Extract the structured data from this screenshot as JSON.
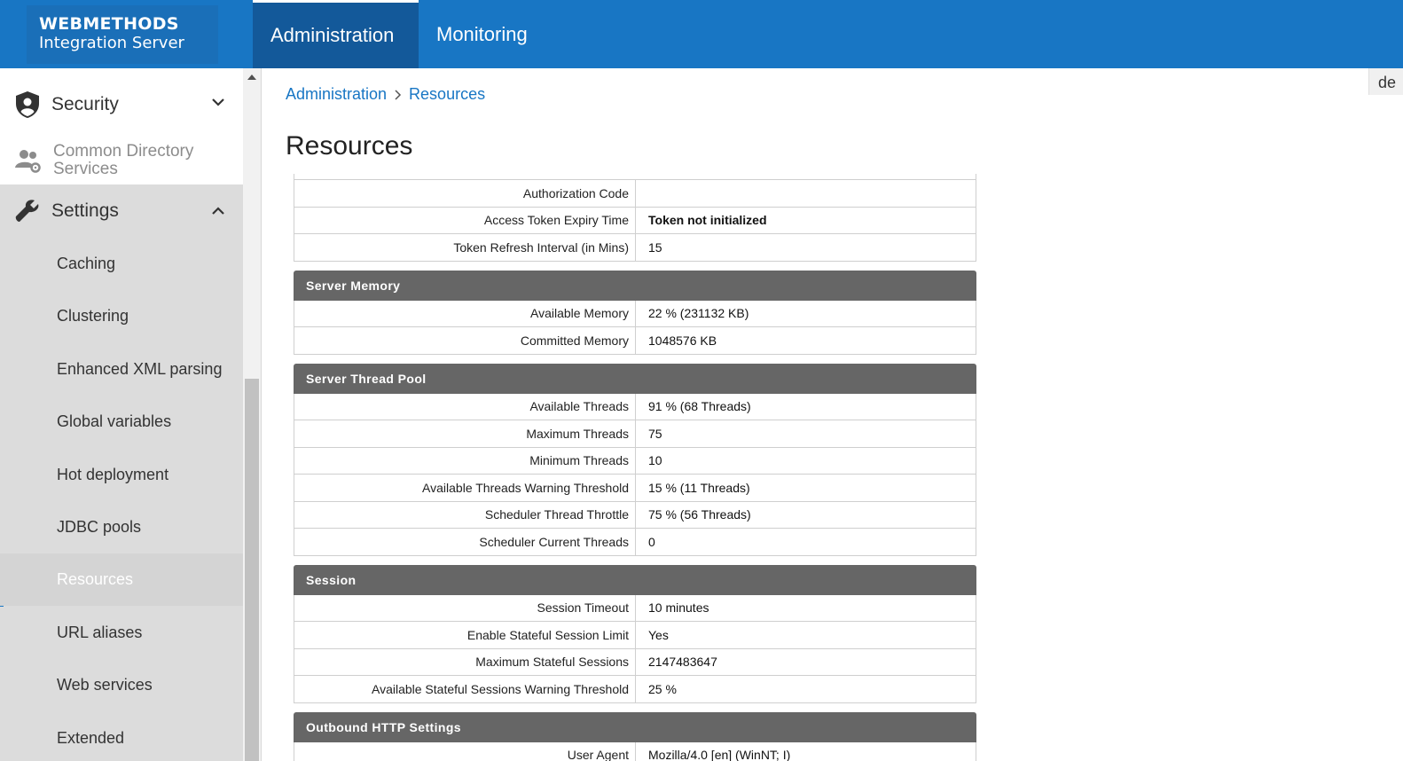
{
  "header": {
    "brand_line1": "WEBMETHODS",
    "brand_line2": "Integration Server",
    "tabs": [
      {
        "label": "Administration",
        "active": true
      },
      {
        "label": "Monitoring",
        "active": false
      }
    ]
  },
  "sidebar": {
    "security": {
      "label": "Security",
      "icon": "shield-user-icon",
      "chevron": "chevron-down-icon"
    },
    "common_directory": {
      "label_line1": "Common Directory",
      "label_line2": "Services",
      "icon": "users-settings-icon"
    },
    "settings": {
      "label": "Settings",
      "icon": "wrench-icon",
      "chevron": "chevron-up-icon"
    },
    "items": [
      {
        "label": "Caching"
      },
      {
        "label": "Clustering"
      },
      {
        "label": "Enhanced XML parsing"
      },
      {
        "label": "Global variables"
      },
      {
        "label": "Hot deployment"
      },
      {
        "label": "JDBC pools"
      },
      {
        "label": "Resources",
        "active": true
      },
      {
        "label": "URL aliases"
      },
      {
        "label": "Web services"
      },
      {
        "label": "Extended"
      }
    ]
  },
  "breadcrumb": {
    "items": [
      "Administration",
      "Resources"
    ]
  },
  "page_title": "Resources",
  "edge_text": "de",
  "top_rows": [
    {
      "k": "Authorization Code",
      "v": ""
    },
    {
      "k": "Access Token Expiry Time",
      "v": "Token not initialized"
    },
    {
      "k": "Token Refresh Interval (in Mins)",
      "v": "15"
    }
  ],
  "sections": [
    {
      "title": "Server Memory",
      "rows": [
        {
          "k": "Available Memory",
          "v": "22 % (231132 KB)"
        },
        {
          "k": "Committed Memory",
          "v": "1048576 KB"
        }
      ]
    },
    {
      "title": "Server Thread Pool",
      "rows": [
        {
          "k": "Available Threads",
          "v": "91 % (68 Threads)"
        },
        {
          "k": "Maximum Threads",
          "v": "75"
        },
        {
          "k": "Minimum Threads",
          "v": "10"
        },
        {
          "k": "Available Threads Warning Threshold",
          "v": "15 % (11 Threads)"
        },
        {
          "k": "Scheduler Thread Throttle",
          "v": "75 % (56 Threads)"
        },
        {
          "k": "Scheduler Current Threads",
          "v": "0"
        }
      ]
    },
    {
      "title": "Session",
      "rows": [
        {
          "k": "Session Timeout",
          "v": "10 minutes"
        },
        {
          "k": "Enable Stateful Session Limit",
          "v": "Yes"
        },
        {
          "k": "Maximum Stateful Sessions",
          "v": "2147483647"
        },
        {
          "k": "Available Stateful Sessions Warning Threshold",
          "v": "25 %"
        }
      ]
    },
    {
      "title": "Outbound HTTP Settings",
      "rows": [
        {
          "k": "User Agent",
          "v": "Mozilla/4.0 [en] (WinNT; I)"
        }
      ]
    }
  ],
  "colors": {
    "topbar": "#1876c4",
    "active_tab": "#13599a",
    "section_header": "#666666",
    "sidebar_settings_bg": "#dcdcdc"
  }
}
